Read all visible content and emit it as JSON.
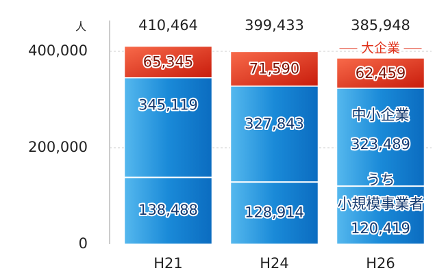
{
  "chart_data": {
    "type": "stacked-bar",
    "ylabel": "人",
    "categories": [
      "H21",
      "H24",
      "H26"
    ],
    "series": [
      {
        "name": "中小企業",
        "color": "#1a8ad8",
        "values": [
          345119,
          327843,
          323489
        ],
        "value_labels": [
          "345,119",
          "327,843",
          "323,489"
        ]
      },
      {
        "name": "大企業",
        "color": "#e0301a",
        "values": [
          65345,
          71590,
          62459
        ],
        "value_labels": [
          "65,345",
          "71,590",
          "62,459"
        ]
      }
    ],
    "inner": {
      "note": "うち",
      "name": "小規模事業者",
      "within": 0,
      "values": [
        138488,
        128914,
        120419
      ],
      "value_labels": [
        "138,488",
        "128,914",
        "120,419"
      ]
    },
    "totals": [
      410464,
      399433,
      385948
    ],
    "total_labels": [
      "410,464",
      "399,433",
      "385,948"
    ],
    "ylim": [
      0,
      400000
    ],
    "yticks": [
      0,
      {
        "value": 200000,
        "label": "200,000"
      },
      {
        "value": 400000,
        "label": "400,000"
      }
    ],
    "grid": true
  }
}
